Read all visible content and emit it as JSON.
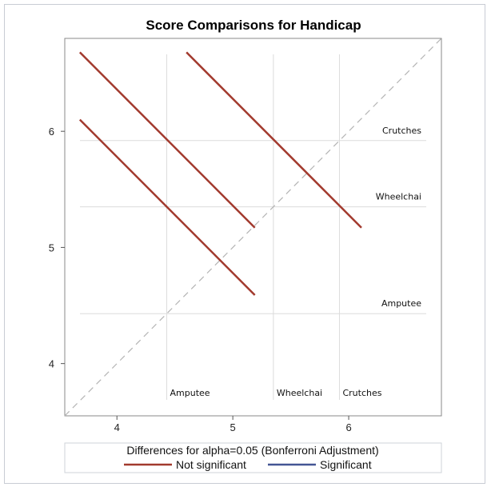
{
  "chart_data": {
    "type": "line",
    "title": "Score Comparisons for Handicap",
    "xlim": [
      3.55,
      6.8
    ],
    "ylim": [
      3.55,
      6.8
    ],
    "x_ticks": [
      4,
      5,
      6
    ],
    "y_ticks": [
      4,
      5,
      6
    ],
    "reference_lines": [
      {
        "label": "Amputee",
        "value": 4.43
      },
      {
        "label": "Wheelchai",
        "value": 5.35
      },
      {
        "label": "Crutches",
        "value": 5.92
      }
    ],
    "diagonal": true,
    "segments": [
      {
        "series": "Not significant",
        "x1": 3.68,
        "y1": 6.68,
        "x2": 5.19,
        "y2": 5.17
      },
      {
        "series": "Not significant",
        "x1": 3.68,
        "y1": 6.1,
        "x2": 5.19,
        "y2": 4.59
      },
      {
        "series": "Not significant",
        "x1": 4.6,
        "y1": 6.68,
        "x2": 6.11,
        "y2": 5.17
      }
    ],
    "legend": {
      "title": "Differences for alpha=0.05 (Bonferroni Adjustment)",
      "items": [
        {
          "label": "Not significant",
          "color": "#a23a2e"
        },
        {
          "label": "Significant",
          "color": "#445694"
        }
      ],
      "placement": "bottom"
    },
    "colors": {
      "not_significant": "#a23a2e",
      "significant": "#445694",
      "reference": "#dcdcdc",
      "diagonal": "#b4b4b4"
    }
  }
}
